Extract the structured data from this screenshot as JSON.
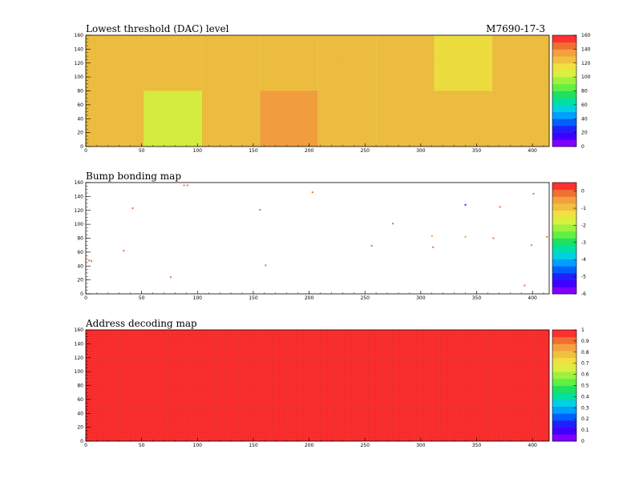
{
  "header": {
    "chip_label": "M7690-17-3"
  },
  "colors": {
    "red": "#ff3030",
    "orange": "#f5a040",
    "yellow": "#eef060",
    "green": "#a8f050",
    "blue": "#3030ff",
    "purple": "#8000ff"
  },
  "chart_data": [
    {
      "type": "heatmap",
      "title": "Lowest threshold (DAC) level",
      "xlim": [
        0,
        415
      ],
      "ylim": [
        0,
        160
      ],
      "x_ticks": [
        "0",
        "50",
        "100",
        "150",
        "200",
        "250",
        "300",
        "350",
        "400"
      ],
      "y_ticks": [
        "0",
        "20",
        "40",
        "60",
        "80",
        "100",
        "120",
        "140",
        "160"
      ],
      "colorbar": {
        "min": 0,
        "max": 160,
        "labels": [
          "0",
          "20",
          "40",
          "60",
          "80",
          "100",
          "120",
          "140",
          "160"
        ]
      },
      "regions": [
        {
          "x": [
            0,
            52
          ],
          "y": [
            0,
            80
          ],
          "value": 125
        },
        {
          "x": [
            52,
            104
          ],
          "y": [
            0,
            80
          ],
          "value": 105
        },
        {
          "x": [
            104,
            156
          ],
          "y": [
            0,
            80
          ],
          "value": 125
        },
        {
          "x": [
            156,
            208
          ],
          "y": [
            0,
            80
          ],
          "value": 135
        },
        {
          "x": [
            208,
            260
          ],
          "y": [
            0,
            80
          ],
          "value": 125
        },
        {
          "x": [
            260,
            312
          ],
          "y": [
            0,
            80
          ],
          "value": 122
        },
        {
          "x": [
            312,
            364
          ],
          "y": [
            0,
            80
          ],
          "value": 124
        },
        {
          "x": [
            364,
            415
          ],
          "y": [
            0,
            80
          ],
          "value": 122
        },
        {
          "x": [
            0,
            52
          ],
          "y": [
            80,
            160
          ],
          "value": 124
        },
        {
          "x": [
            52,
            104
          ],
          "y": [
            80,
            160
          ],
          "value": 124
        },
        {
          "x": [
            104,
            156
          ],
          "y": [
            80,
            160
          ],
          "value": 124
        },
        {
          "x": [
            156,
            208
          ],
          "y": [
            80,
            160
          ],
          "value": 124
        },
        {
          "x": [
            208,
            260
          ],
          "y": [
            80,
            160
          ],
          "value": 124
        },
        {
          "x": [
            260,
            312
          ],
          "y": [
            80,
            160
          ],
          "value": 124
        },
        {
          "x": [
            312,
            364
          ],
          "y": [
            80,
            160
          ],
          "value": 110
        },
        {
          "x": [
            364,
            415
          ],
          "y": [
            80,
            160
          ],
          "value": 124
        }
      ]
    },
    {
      "type": "scatter",
      "title": "Bump bonding map",
      "xlim": [
        0,
        415
      ],
      "ylim": [
        0,
        160
      ],
      "x_ticks": [
        "0",
        "50",
        "100",
        "150",
        "200",
        "250",
        "300",
        "350",
        "400"
      ],
      "y_ticks": [
        "0",
        "20",
        "40",
        "60",
        "80",
        "100",
        "120",
        "140",
        "160"
      ],
      "colorbar": {
        "min": -6,
        "max": 0.5,
        "labels": [
          "-6",
          "-5",
          "-4",
          "-3",
          "-2",
          "-1",
          "0"
        ]
      },
      "points": [
        {
          "x": 3,
          "y": 48,
          "value": 0
        },
        {
          "x": 5,
          "y": 47,
          "value": 0
        },
        {
          "x": 34,
          "y": 62,
          "value": 0
        },
        {
          "x": 42,
          "y": 123,
          "value": 0
        },
        {
          "x": 76,
          "y": 24,
          "value": 0
        },
        {
          "x": 88,
          "y": 156,
          "value": 0
        },
        {
          "x": 91,
          "y": 156,
          "value": 0
        },
        {
          "x": 156,
          "y": 121,
          "value": 0
        },
        {
          "x": 161,
          "y": 41,
          "value": 0
        },
        {
          "x": 203,
          "y": 146,
          "value": 0
        },
        {
          "x": 256,
          "y": 69,
          "value": 0
        },
        {
          "x": 275,
          "y": 101,
          "value": 0
        },
        {
          "x": 310,
          "y": 83,
          "value": -0.5
        },
        {
          "x": 311,
          "y": 67,
          "value": 0
        },
        {
          "x": 340,
          "y": 128,
          "value": -6
        },
        {
          "x": 340,
          "y": 82,
          "value": -0.5
        },
        {
          "x": 365,
          "y": 80,
          "value": 0
        },
        {
          "x": 371,
          "y": 125,
          "value": 0
        },
        {
          "x": 393,
          "y": 12,
          "value": 0
        },
        {
          "x": 399,
          "y": 70,
          "value": 0
        },
        {
          "x": 401,
          "y": 144,
          "value": 0
        },
        {
          "x": 413,
          "y": 82,
          "value": 0
        }
      ]
    },
    {
      "type": "heatmap",
      "title": "Address decoding map",
      "xlim": [
        0,
        415
      ],
      "ylim": [
        0,
        160
      ],
      "x_ticks": [
        "0",
        "50",
        "100",
        "150",
        "200",
        "250",
        "300",
        "350",
        "400"
      ],
      "y_ticks": [
        "0",
        "20",
        "40",
        "60",
        "80",
        "100",
        "120",
        "140",
        "160"
      ],
      "colorbar": {
        "min": 0,
        "max": 1,
        "labels": [
          "0",
          "0.1",
          "0.2",
          "0.3",
          "0.4",
          "0.5",
          "0.6",
          "0.7",
          "0.8",
          "0.9",
          "1"
        ]
      },
      "regions": [
        {
          "x": [
            0,
            415
          ],
          "y": [
            0,
            160
          ],
          "value": 1
        }
      ]
    }
  ]
}
